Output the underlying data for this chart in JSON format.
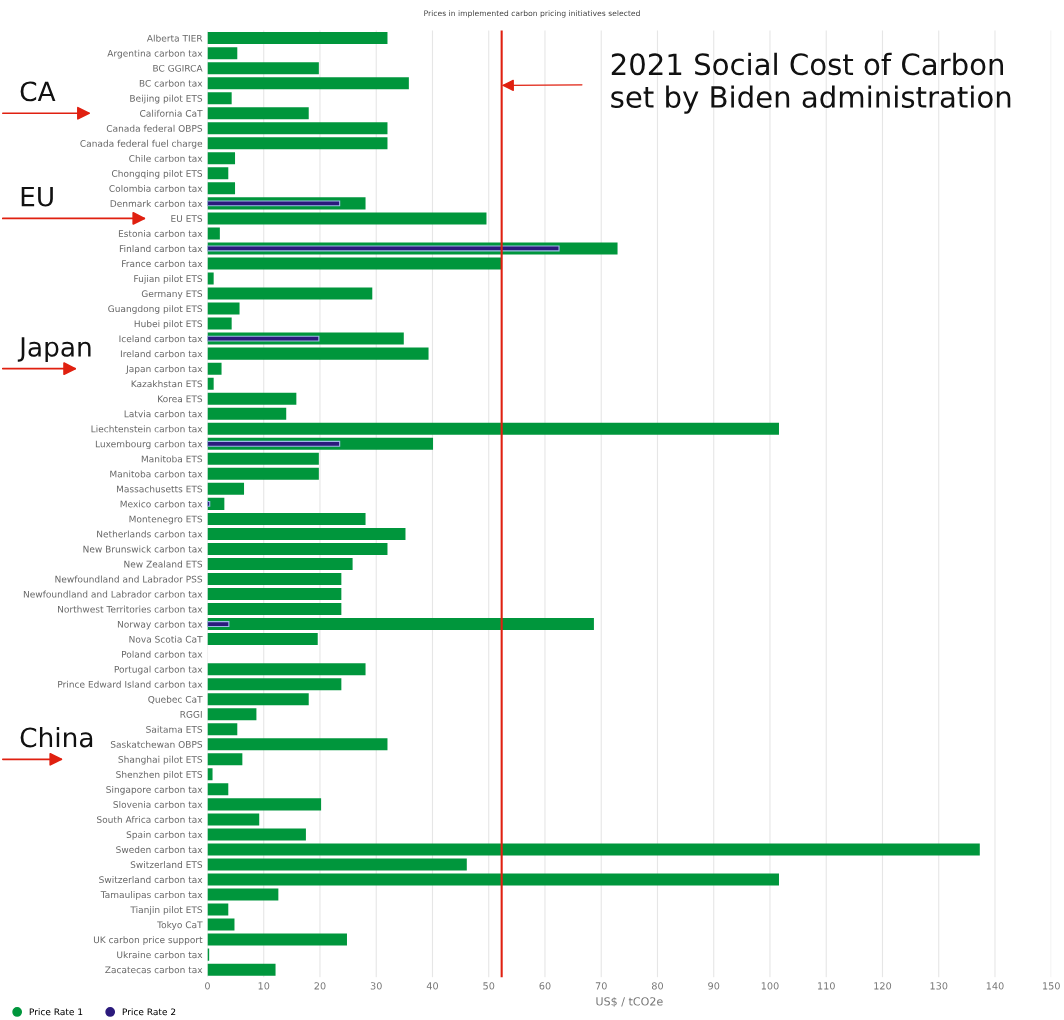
{
  "chart_data": {
    "type": "bar",
    "orientation": "horizontal",
    "title": "Prices in implemented carbon pricing initiatives selected",
    "xlabel": "US$ / tCO2e",
    "categories": [
      "Alberta TIER",
      "Argentina carbon tax",
      "BC GGIRCA",
      "BC carbon tax",
      "Beijing pilot ETS",
      "California CaT",
      "Canada federal OBPS",
      "Canada federal fuel charge",
      "Chile carbon tax",
      "Chongqing pilot ETS",
      "Colombia carbon tax",
      "Denmark carbon tax",
      "EU ETS",
      "Estonia carbon tax",
      "Finland carbon tax",
      "France carbon tax",
      "Fujian pilot ETS",
      "Germany ETS",
      "Guangdong pilot ETS",
      "Hubei pilot ETS",
      "Iceland carbon tax",
      "Ireland carbon tax",
      "Japan carbon tax",
      "Kazakhstan ETS",
      "Korea ETS",
      "Latvia carbon tax",
      "Liechtenstein carbon tax",
      "Luxembourg carbon tax",
      "Manitoba ETS",
      "Manitoba carbon tax",
      "Massachusetts ETS",
      "Mexico carbon tax",
      "Montenegro ETS",
      "Netherlands carbon tax",
      "New Brunswick carbon tax",
      "New Zealand ETS",
      "Newfoundland and Labrador PSS",
      "Newfoundland and Labrador carbon tax",
      "Northwest Territories carbon tax",
      "Norway carbon tax",
      "Nova Scotia CaT",
      "Poland carbon tax",
      "Portugal carbon tax",
      "Prince Edward Island carbon tax",
      "Quebec CaT",
      "RGGI",
      "Saitama ETS",
      "Saskatchewan OBPS",
      "Shanghai pilot ETS",
      "Shenzhen pilot ETS",
      "Singapore carbon tax",
      "Slovenia carbon tax",
      "South Africa carbon tax",
      "Spain carbon tax",
      "Sweden carbon tax",
      "Switzerland ETS",
      "Switzerland carbon tax",
      "Tamaulipas carbon tax",
      "Tianjin pilot ETS",
      "Tokyo CaT",
      "UK carbon price support",
      "Ukraine carbon tax",
      "Zacatecas carbon tax"
    ],
    "series": [
      {
        "name": "Price Rate 1",
        "color": "#00963c",
        "values": [
          32,
          5.3,
          19.8,
          35.8,
          4.3,
          18,
          32,
          32,
          4.9,
          3.7,
          4.9,
          28.1,
          49.6,
          2.2,
          72.9,
          52.3,
          1.1,
          29.3,
          5.7,
          4.3,
          34.9,
          39.3,
          2.5,
          1.1,
          15.8,
          14,
          101.6,
          40.1,
          19.8,
          19.8,
          6.5,
          3,
          28.1,
          35.2,
          32,
          25.8,
          23.8,
          23.8,
          23.8,
          68.7,
          19.6,
          0,
          28.1,
          23.8,
          18,
          8.7,
          5.3,
          32,
          6.2,
          0.9,
          3.7,
          20.2,
          9.2,
          17.5,
          137.3,
          46.1,
          101.6,
          12.6,
          3.7,
          4.8,
          24.8,
          0.3,
          12.1
        ]
      },
      {
        "name": "Price Rate 2",
        "color": "#2b1a7c",
        "values": [
          null,
          null,
          null,
          null,
          null,
          null,
          null,
          null,
          null,
          null,
          null,
          23.5,
          null,
          null,
          62.5,
          null,
          null,
          null,
          null,
          null,
          19.8,
          null,
          null,
          null,
          null,
          null,
          null,
          23.5,
          null,
          null,
          null,
          0.4,
          null,
          null,
          null,
          null,
          null,
          null,
          null,
          3.8,
          null,
          null,
          null,
          null,
          null,
          null,
          null,
          null,
          null,
          null,
          null,
          null,
          null,
          null,
          null,
          null,
          null,
          null,
          null,
          null,
          null,
          null,
          null
        ]
      }
    ],
    "xlim": [
      0,
      150
    ],
    "xticks": [
      0,
      10,
      20,
      30,
      40,
      50,
      60,
      70,
      80,
      90,
      100,
      110,
      120,
      130,
      140,
      150
    ],
    "grid": "x",
    "legend": "bottom left",
    "ref_lines": [
      {
        "axis": "x",
        "value": 52.3,
        "label": "2021 Social Cost of Carbon\nset by Biden administration",
        "color": "#e02010"
      }
    ],
    "annotations": [
      "CA",
      "EU",
      "Japan",
      "China"
    ]
  }
}
